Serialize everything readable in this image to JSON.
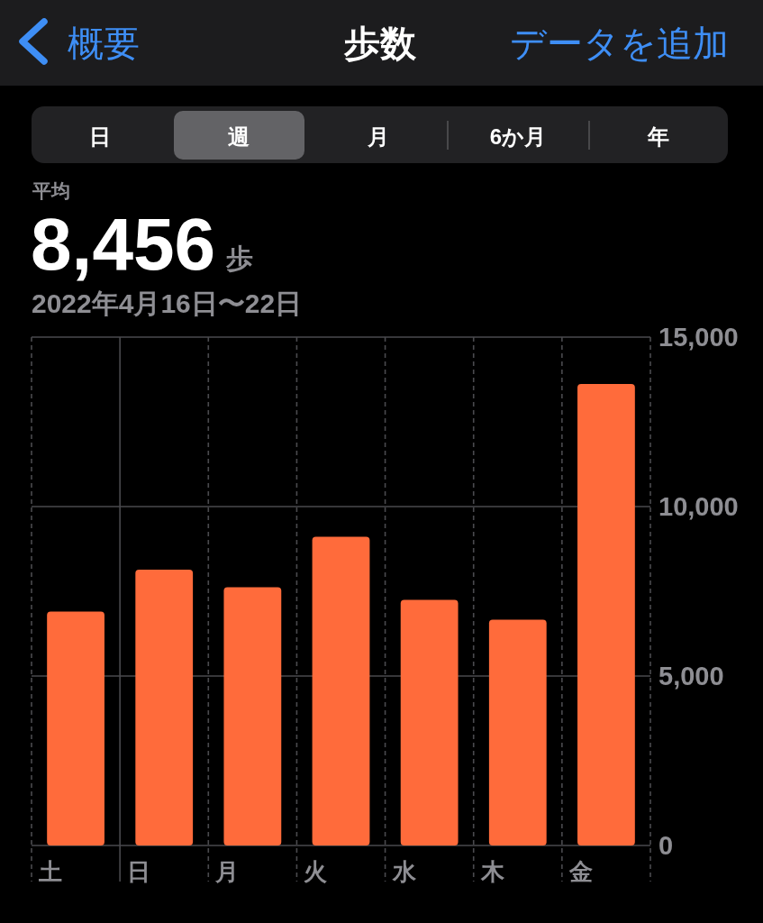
{
  "chart_data": {
    "type": "bar",
    "title": "歩数",
    "subtitle": "2022年4月16日〜22日",
    "categories": [
      "土",
      "日",
      "月",
      "火",
      "水",
      "木",
      "金"
    ],
    "values": [
      6900,
      8140,
      7620,
      9110,
      7250,
      6660,
      13620
    ],
    "color": "#ff6b3b",
    "ylim": [
      0,
      15000
    ],
    "yticks": [
      0,
      {
        "value": 5000,
        "label": "5,000"
      },
      {
        "value": 10000,
        "label": "10,000"
      },
      {
        "value": 15000,
        "label": "15,000"
      }
    ],
    "grid": true,
    "annotations": [
      "概要",
      "データを追加",
      "日",
      "週",
      "月",
      "6か月",
      "年",
      "平均",
      "8,456",
      "歩"
    ]
  }
}
